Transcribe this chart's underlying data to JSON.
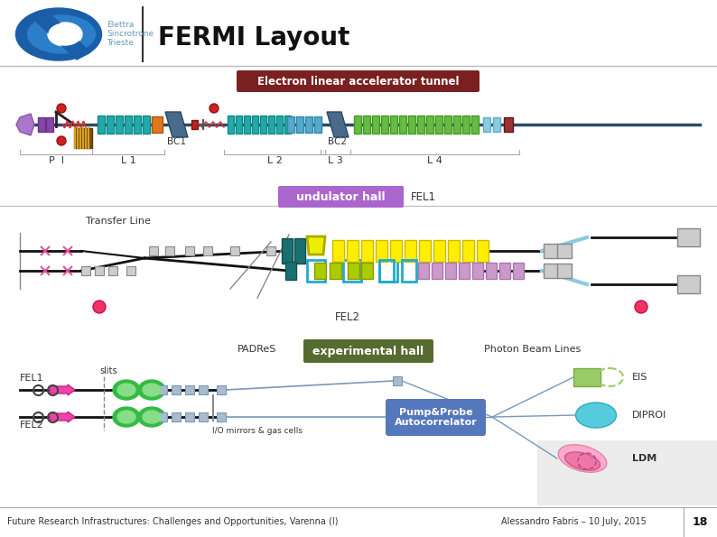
{
  "title": "FERMI Layout",
  "footer_left": "Future Research Infrastructures: Challenges and Opportunities, Varenna (I)",
  "footer_right": "Alessandro Fabris – 10 July, 2015",
  "footer_page": "18",
  "logo_text_line1": "Elettra",
  "logo_text_line2": "Sincrotrone",
  "logo_text_line3": "Trieste",
  "tunnel_label": "Electron linear accelerator tunnel",
  "tunnel_label_bg": "#7A2020",
  "undulator_label": "undulator hall",
  "undulator_label_bg": "#AA66CC",
  "fel1_label": "FEL1",
  "fel2_label": "FEL2",
  "bc1_label": "BC1",
  "bc2_label": "BC2",
  "pi_label": "P  I",
  "l1_label": "L 1",
  "l2_label": "L 2",
  "l3_label": "L 3",
  "l4_label": "L 4",
  "transfer_line_label": "Transfer Line",
  "padres_label": "PADReS",
  "exp_hall_label": "experimental hall",
  "exp_hall_bg": "#556B2F",
  "photon_label": "Photon Beam Lines",
  "fel1_side_label": "FEL1",
  "fel2_side_label": "FEL2",
  "slits_label": "slits",
  "io_label": "I/O mirrors & gas cells",
  "pump_label": "Pump&Probe\nAutocorrelator",
  "pump_label_bg": "#5577BB",
  "eis_label": "EIS",
  "diproi_label": "DIPROI",
  "ldm_label": "LDM",
  "bg_color": "#FFFFFF"
}
